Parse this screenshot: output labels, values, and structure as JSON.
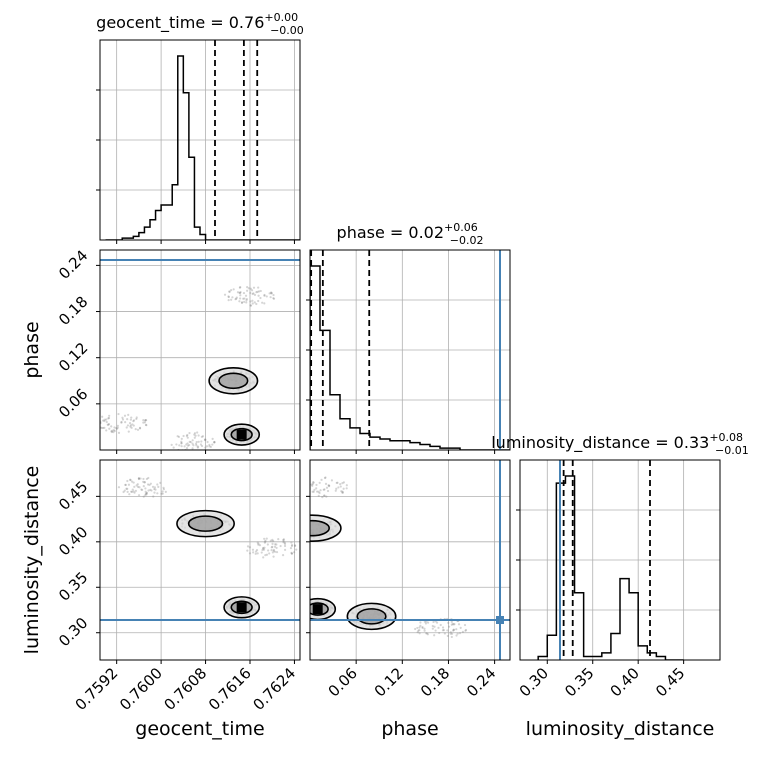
{
  "chart_data": {
    "type": "corner",
    "parameters": [
      "geocent_time",
      "phase",
      "luminosity_distance"
    ],
    "titles": {
      "geocent_time": {
        "label": "geocent_time",
        "value": "0.76",
        "plus": "+0.00",
        "minus": "−0.00"
      },
      "phase": {
        "label": "phase",
        "value": "0.02",
        "plus": "+0.06",
        "minus": "−0.02"
      },
      "luminosity_distance": {
        "label": "luminosity_distance",
        "value": "0.33",
        "plus": "+0.08",
        "minus": "−0.01"
      }
    },
    "ranges": {
      "geocent_time": [
        0.7589,
        0.7625
      ],
      "phase": [
        0.0,
        0.26
      ],
      "luminosity_distance": [
        0.27,
        0.49
      ]
    },
    "ticks": {
      "geocent_time": [
        "0.7592",
        "0.7600",
        "0.7608",
        "0.7616",
        "0.7624"
      ],
      "phase": [
        "0.06",
        "0.12",
        "0.18",
        "0.24"
      ],
      "luminosity_distance": [
        "0.30",
        "0.35",
        "0.40",
        "0.45"
      ]
    },
    "truths": {
      "geocent_time": null,
      "phase": 0.247,
      "luminosity_distance": 0.314
    },
    "quantiles": {
      "geocent_time": [
        0.76097,
        0.76149,
        0.76173
      ],
      "phase": [
        0.0015,
        0.0167,
        0.077
      ],
      "luminosity_distance": [
        0.318,
        0.328,
        0.413
      ]
    },
    "histograms": {
      "geocent_time": {
        "start": 0.759,
        "step": 0.0001,
        "counts": [
          0,
          0,
          0,
          1,
          1,
          2,
          4,
          7,
          11,
          16,
          19,
          19,
          30,
          100,
          80,
          45,
          7,
          3,
          0,
          0,
          0,
          0,
          0,
          0,
          0,
          0,
          0,
          0,
          0,
          0,
          0,
          0,
          0,
          0,
          0,
          0
        ]
      },
      "phase": {
        "start": 0.0,
        "step": 0.013,
        "counts": [
          100,
          65,
          30,
          17,
          12,
          9,
          7,
          6,
          5,
          5,
          4,
          3,
          2,
          1,
          1,
          0,
          0,
          0,
          0,
          0
        ]
      },
      "luminosity_distance": {
        "start": 0.29,
        "step": 0.01,
        "counts": [
          2,
          14,
          100,
          104,
          38,
          2,
          2,
          4,
          15,
          46,
          38,
          8,
          4,
          2,
          0,
          0
        ]
      }
    },
    "scatter_density": {
      "geocent_time_vs_phase": [
        {
          "x": 0.76145,
          "y": 0.02,
          "weight": "peak"
        },
        {
          "x": 0.7613,
          "y": 0.09,
          "weight": "ridge"
        },
        {
          "x": 0.7616,
          "y": 0.2,
          "weight": "tail"
        },
        {
          "x": 0.7593,
          "y": 0.035,
          "weight": "tail"
        },
        {
          "x": 0.7606,
          "y": 0.01,
          "weight": "band"
        }
      ],
      "geocent_time_vs_luminosity_distance": [
        {
          "x": 0.76145,
          "y": 0.328,
          "weight": "peak"
        },
        {
          "x": 0.7608,
          "y": 0.42,
          "weight": "secondary"
        },
        {
          "x": 0.7597,
          "y": 0.46,
          "weight": "tail"
        },
        {
          "x": 0.762,
          "y": 0.393,
          "weight": "tail"
        }
      ],
      "phase_vs_luminosity_distance": [
        {
          "x": 0.01,
          "y": 0.326,
          "weight": "peak"
        },
        {
          "x": 0.003,
          "y": 0.415,
          "weight": "secondary"
        },
        {
          "x": 0.08,
          "y": 0.318,
          "weight": "ridge"
        },
        {
          "x": 0.17,
          "y": 0.305,
          "weight": "tail"
        },
        {
          "x": 0.015,
          "y": 0.46,
          "weight": "tail"
        }
      ]
    }
  }
}
